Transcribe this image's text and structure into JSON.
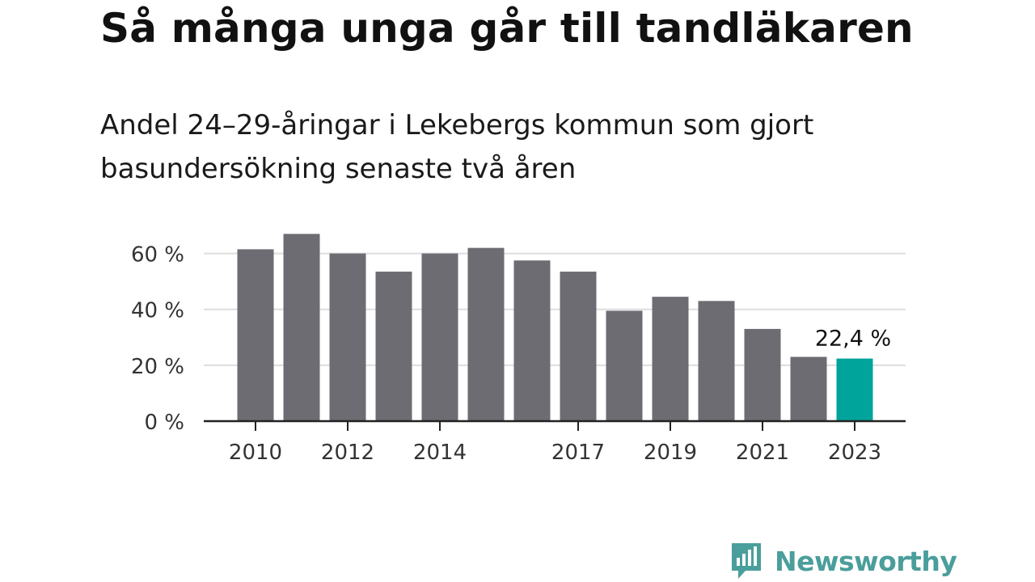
{
  "header": {
    "title": "Så många unga går till tandläkaren",
    "subtitle": "Andel 24–29-åringar i Lekebergs kommun som gjort basundersökning senaste två åren"
  },
  "brand": {
    "name": "Newsworthy",
    "icon": "newsworthy-logo-icon",
    "color": "#4a9e9b"
  },
  "chart_data": {
    "type": "bar",
    "categories": [
      "2010",
      "2011",
      "2012",
      "2013",
      "2014",
      "2015",
      "2016",
      "2017",
      "2018",
      "2019",
      "2020",
      "2021",
      "2022",
      "2023"
    ],
    "values": [
      61.5,
      67,
      60,
      53.5,
      60,
      62,
      57.5,
      53.5,
      39.5,
      44.5,
      43,
      33,
      23,
      22.4
    ],
    "x_tick_labels": [
      "2010",
      "",
      "2012",
      "",
      "2014",
      "",
      "",
      "2017",
      "",
      "2019",
      "",
      "2021",
      "",
      "2023"
    ],
    "y_ticks": [
      0,
      20,
      40,
      60
    ],
    "y_tick_labels": [
      "0 %",
      "20 %",
      "40 %",
      "60 %"
    ],
    "ylim": [
      0,
      70
    ],
    "highlight_index": 13,
    "highlight_label": "22,4 %",
    "colors": {
      "bar": "#6d6c73",
      "highlight": "#00a49a",
      "grid": "#dddddd",
      "axis": "#222222"
    },
    "grid": true,
    "xlabel": "",
    "ylabel": ""
  }
}
